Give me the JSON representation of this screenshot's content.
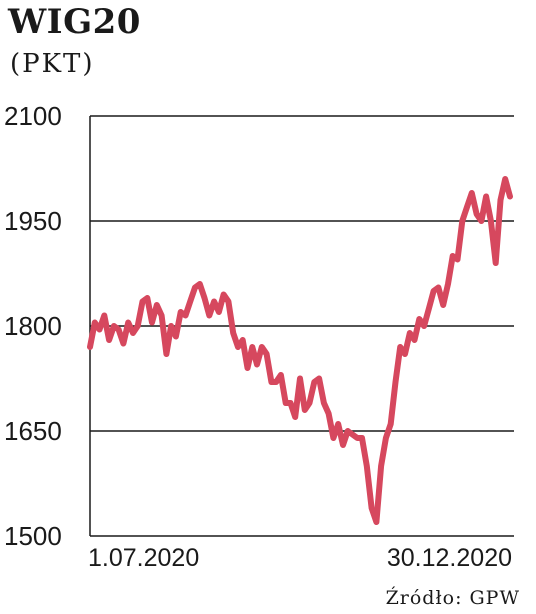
{
  "header": {
    "title": "WIG20",
    "subtitle": "(PKT)"
  },
  "source": "Źródło: GPW",
  "colors": {
    "line": "#d6485e",
    "grid": "#1a1a1a",
    "text": "#1a1a1a"
  },
  "chart_data": {
    "type": "line",
    "title": "WIG20",
    "ylabel": "(PKT)",
    "xlabel": "",
    "ylim": [
      1500,
      2100
    ],
    "yticks": [
      1500,
      1650,
      1800,
      1950,
      2100
    ],
    "xtick_labels": [
      "1.07.2020",
      "30.12.2020"
    ],
    "grid": true,
    "series": [
      {
        "values": [
          1770,
          1805,
          1795,
          1815,
          1780,
          1800,
          1795,
          1775,
          1805,
          1790,
          1800,
          1835,
          1840,
          1805,
          1830,
          1815,
          1760,
          1800,
          1785,
          1820,
          1815,
          1835,
          1855,
          1860,
          1840,
          1815,
          1835,
          1820,
          1845,
          1835,
          1790,
          1770,
          1780,
          1740,
          1770,
          1745,
          1770,
          1760,
          1720,
          1720,
          1730,
          1690,
          1690,
          1670,
          1725,
          1680,
          1690,
          1720,
          1725,
          1690,
          1675,
          1640,
          1660,
          1630,
          1650,
          1645,
          1640,
          1640,
          1600,
          1540,
          1520,
          1600,
          1640,
          1660,
          1720,
          1770,
          1760,
          1790,
          1780,
          1810,
          1800,
          1825,
          1850,
          1855,
          1830,
          1860,
          1900,
          1895,
          1950,
          1970,
          1990,
          1960,
          1950,
          1985,
          1950,
          1890,
          1980,
          2010,
          1985
        ]
      }
    ]
  }
}
